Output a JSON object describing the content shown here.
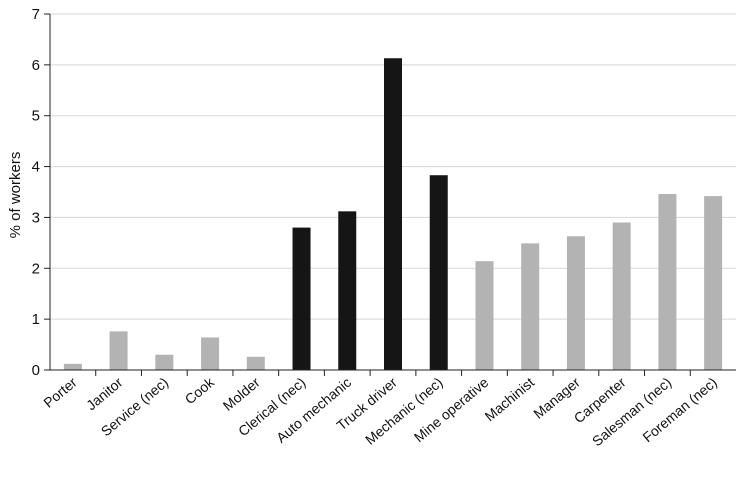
{
  "chart_data": {
    "type": "bar",
    "title": "",
    "xlabel": "",
    "ylabel": "% of workers",
    "ylim": [
      0,
      7
    ],
    "yticks": [
      0,
      1,
      2,
      3,
      4,
      5,
      6,
      7
    ],
    "grid": true,
    "colors": {
      "gray": "#b3b3b3",
      "black": "#151515"
    },
    "categories": [
      "Porter",
      "Janitor",
      "Service (nec)",
      "Cook",
      "Molder",
      "Clerical (nec)",
      "Auto mechanic",
      "Truck driver",
      "Mechanic (nec)",
      "Mine operative",
      "Machinist",
      "Manager",
      "Carpenter",
      "Salesman (nec)",
      "Foreman (nec)"
    ],
    "values": [
      0.12,
      0.76,
      0.3,
      0.64,
      0.26,
      2.8,
      3.12,
      6.13,
      3.83,
      2.14,
      2.49,
      2.63,
      2.9,
      3.46,
      3.42
    ],
    "bar_colors": [
      "gray",
      "gray",
      "gray",
      "gray",
      "gray",
      "black",
      "black",
      "black",
      "black",
      "gray",
      "gray",
      "gray",
      "gray",
      "gray",
      "gray"
    ]
  }
}
